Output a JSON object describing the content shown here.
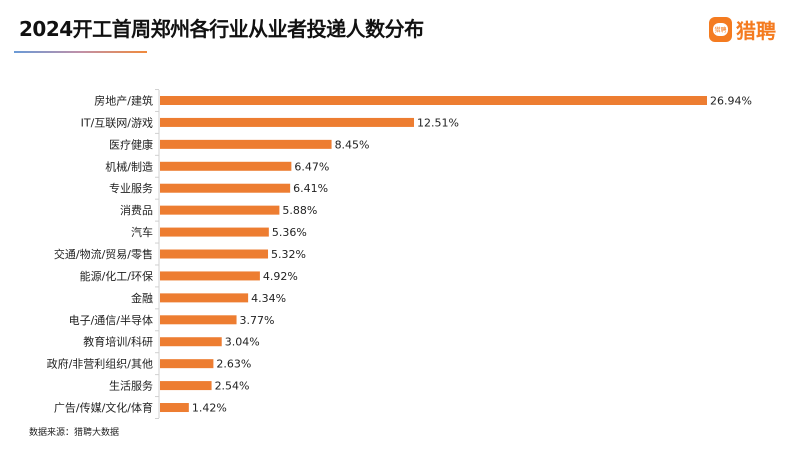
{
  "title": "2024开工首周郑州各行业从业者投递人数分布",
  "logo": {
    "text": "猎聘",
    "icon_text": "猎聘"
  },
  "source": "数据来源：猎聘大数据",
  "colors": {
    "bar": "#ed7d31",
    "accent": "#f47b20"
  },
  "chart_data": {
    "type": "bar",
    "orientation": "horizontal",
    "categories": [
      "房地产/建筑",
      "IT/互联网/游戏",
      "医疗健康",
      "机械/制造",
      "专业服务",
      "消费品",
      "汽车",
      "交通/物流/贸易/零售",
      "能源/化工/环保",
      "金融",
      "电子/通信/半导体",
      "教育培训/科研",
      "政府/非营利组织/其他",
      "生活服务",
      "广告/传媒/文化/体育"
    ],
    "values": [
      26.94,
      12.51,
      8.45,
      6.47,
      6.41,
      5.88,
      5.36,
      5.32,
      4.92,
      4.34,
      3.77,
      3.04,
      2.63,
      2.54,
      1.42
    ],
    "labels": [
      "26.94%",
      "12.51%",
      "8.45%",
      "6.47%",
      "6.41%",
      "5.88%",
      "5.36%",
      "5.32%",
      "4.92%",
      "4.34%",
      "3.77%",
      "3.04%",
      "2.63%",
      "2.54%",
      "1.42%"
    ],
    "grid": false
  }
}
